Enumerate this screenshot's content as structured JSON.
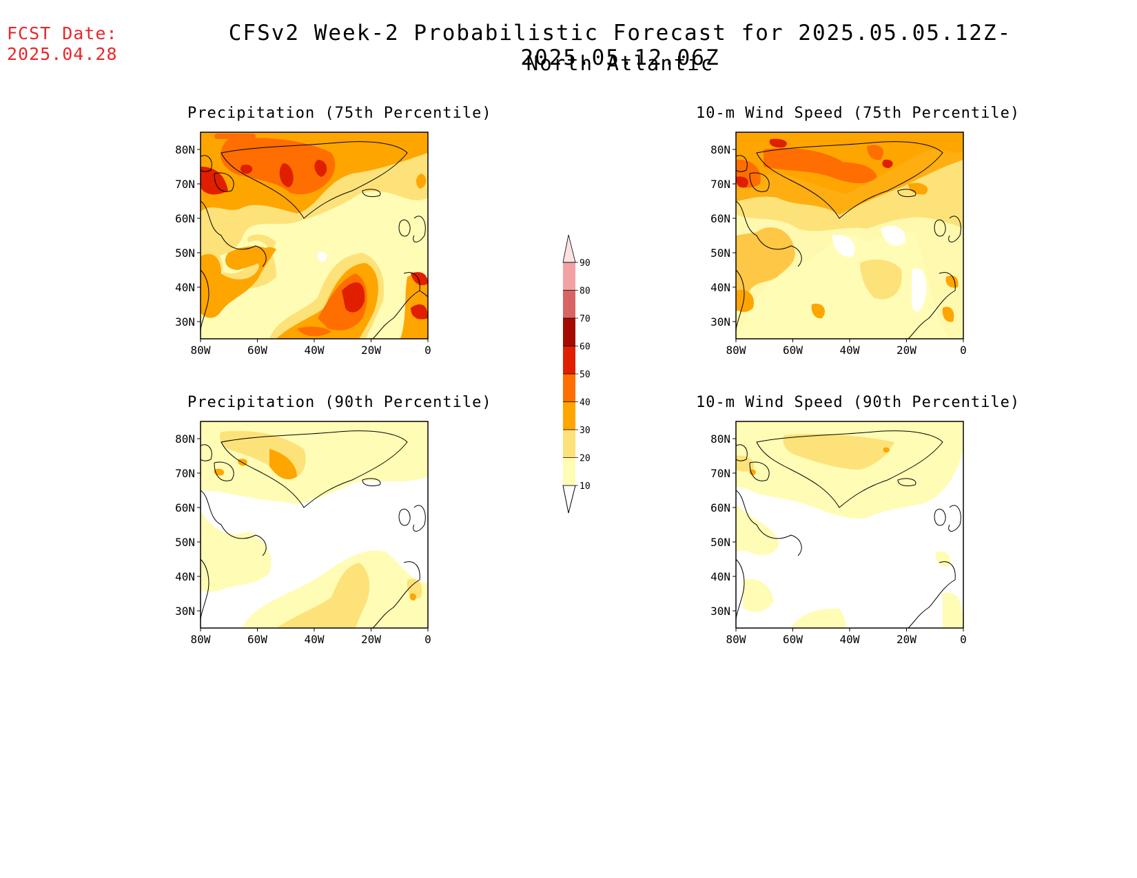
{
  "header": {
    "fcst_label": "FCST Date:",
    "fcst_date": "2025.04.28",
    "title": "CFSv2 Week-2 Probabilistic Forecast for 2025.05.05.12Z-2025.05.12.06Z",
    "subtitle": "North Atlantic"
  },
  "panels": [
    {
      "id": "precip75",
      "title": "Precipitation (75th Percentile)"
    },
    {
      "id": "precip90",
      "title": "Precipitation (90th Percentile)"
    },
    {
      "id": "wind75",
      "title": "10-m Wind Speed (75th Percentile)"
    },
    {
      "id": "wind90",
      "title": "10-m Wind Speed (90th Percentile)"
    }
  ],
  "axes": {
    "lat_labels": [
      "80N",
      "70N",
      "60N",
      "50N",
      "40N",
      "30N"
    ],
    "lon_labels": [
      "80W",
      "60W",
      "40W",
      "20W",
      "0"
    ],
    "lat_range": [
      25,
      85
    ],
    "lon_range": [
      -80,
      0
    ]
  },
  "colorbar": {
    "levels": [
      "10",
      "20",
      "30",
      "40",
      "50",
      "60",
      "70",
      "80",
      "90"
    ],
    "colors": [
      "#fffcb5",
      "#fde27a",
      "#ffa500",
      "#ff6e00",
      "#e01e00",
      "#a50a00",
      "#d96464",
      "#f2a2a2",
      "#fde2e2"
    ]
  },
  "colors": {
    "fcst": "#e8262a",
    "c10": "#fffcb5",
    "c20": "#fde27a",
    "c30": "#ffa500",
    "c40": "#ff6e00",
    "c50": "#e01e00"
  }
}
